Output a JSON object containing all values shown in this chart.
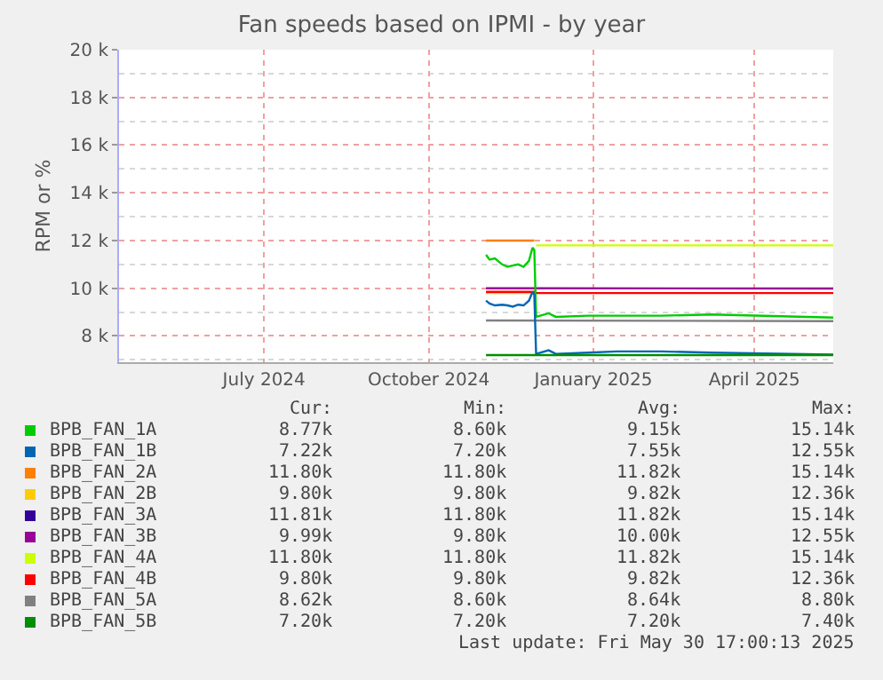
{
  "chart_data": {
    "type": "line",
    "title": "Fan speeds based on IPMI - by year",
    "ylabel": "RPM or %",
    "xlim": [
      "2024-04-26",
      "2025-05-30"
    ],
    "xticks": [
      {
        "value": "2024-07-16",
        "label": "July 2024"
      },
      {
        "value": "2024-10-16",
        "label": "October 2024"
      },
      {
        "value": "2025-01-16",
        "label": "January 2025"
      },
      {
        "value": "2025-04-16",
        "label": "April 2025"
      }
    ],
    "ylim": [
      6900,
      20000
    ],
    "yticks": [
      {
        "value": 8000,
        "label": "8 k"
      },
      {
        "value": 10000,
        "label": "10 k"
      },
      {
        "value": 12000,
        "label": "12 k"
      },
      {
        "value": 14000,
        "label": "14 k"
      },
      {
        "value": 16000,
        "label": "16 k"
      },
      {
        "value": 18000,
        "label": "18 k"
      },
      {
        "value": 20000,
        "label": "20 k"
      }
    ],
    "grid": true,
    "legend": "bottom",
    "line_style": "solid",
    "marker": "none",
    "series": [
      {
        "name": "BPB_FAN_3A",
        "color": "#330099"
      },
      {
        "name": "BPB_FAN_4A",
        "color": "#ccff00",
        "x": [
          "2024-12-15",
          "2025-05-30"
        ],
        "values": [
          11800,
          11800
        ]
      },
      {
        "name": "BPB_FAN_2A",
        "color": "#ff7f00",
        "x": [
          "2024-11-17",
          "2024-12-14"
        ],
        "values": [
          12000,
          12000
        ]
      },
      {
        "name": "BPB_FAN_2B",
        "color": "#ffcc00",
        "x": [
          "2024-11-17",
          "2024-12-14"
        ],
        "values": [
          9800,
          9800
        ]
      },
      {
        "name": "BPB_FAN_4B",
        "color": "#ff0000",
        "x": [
          "2024-11-17",
          "2024-12-14",
          "2024-12-15",
          "2025-05-30"
        ],
        "values": [
          9850,
          9850,
          9800,
          9800
        ]
      },
      {
        "name": "BPB_FAN_3B",
        "color": "#990099",
        "x": [
          "2024-11-17",
          "2024-12-14",
          "2024-12-15",
          "2025-05-30"
        ],
        "values": [
          10000,
          10000,
          10000,
          9990
        ]
      },
      {
        "name": "BPB_FAN_5A",
        "color": "#808080",
        "x": [
          "2024-11-17",
          "2025-05-30"
        ],
        "values": [
          8650,
          8620
        ]
      },
      {
        "name": "BPB_FAN_1A",
        "color": "#00cc00",
        "x": [
          "2024-11-17",
          "2024-11-19",
          "2024-11-22",
          "2024-11-26",
          "2024-11-29",
          "2024-12-02",
          "2024-12-05",
          "2024-12-08",
          "2024-12-11",
          "2024-12-13",
          "2024-12-14",
          "2024-12-15",
          "2024-12-22",
          "2024-12-26",
          "2025-01-13",
          "2025-01-29",
          "2025-02-23",
          "2025-03-23",
          "2025-05-30"
        ],
        "values": [
          11400,
          11200,
          11250,
          11000,
          10900,
          10950,
          11000,
          10900,
          11150,
          11700,
          11600,
          8800,
          8950,
          8800,
          8850,
          8850,
          8850,
          8900,
          8770
        ]
      },
      {
        "name": "BPB_FAN_1B",
        "color": "#0066b3",
        "x": [
          "2024-11-17",
          "2024-11-19",
          "2024-11-22",
          "2024-11-26",
          "2024-11-29",
          "2024-12-02",
          "2024-12-05",
          "2024-12-08",
          "2024-12-11",
          "2024-12-13",
          "2024-12-14",
          "2024-12-15",
          "2024-12-22",
          "2024-12-26",
          "2025-01-13",
          "2025-01-29",
          "2025-02-23",
          "2025-03-23",
          "2025-05-30"
        ],
        "values": [
          9480,
          9360,
          9280,
          9310,
          9280,
          9230,
          9310,
          9280,
          9480,
          9850,
          9730,
          7250,
          7400,
          7250,
          7300,
          7350,
          7350,
          7300,
          7220
        ]
      },
      {
        "name": "BPB_FAN_5B",
        "color": "#008f00",
        "x": [
          "2024-11-17",
          "2025-05-30"
        ],
        "values": [
          7200,
          7200
        ]
      }
    ],
    "annotations": [
      "Cur:",
      "Min:",
      "Avg:",
      "Max:",
      "8.77k",
      "8.60k",
      "9.15k",
      "15.14k",
      "7.22k",
      "7.20k",
      "7.55k",
      "12.55k",
      "11.80k",
      "11.80k",
      "11.82k",
      "15.14k",
      "9.80k",
      "9.80k",
      "9.82k",
      "12.36k",
      "11.81k",
      "11.80k",
      "11.82k",
      "15.14k",
      "9.99k",
      "9.80k",
      "10.00k",
      "12.55k",
      "11.80k",
      "11.80k",
      "11.82k",
      "15.14k",
      "9.80k",
      "9.80k",
      "9.82k",
      "12.36k",
      "8.62k",
      "8.60k",
      "8.64k",
      "8.80k",
      "7.20k",
      "7.20k",
      "7.20k",
      "7.40k",
      "Last update: Fri May 30 17:00:13 2025"
    ]
  }
}
